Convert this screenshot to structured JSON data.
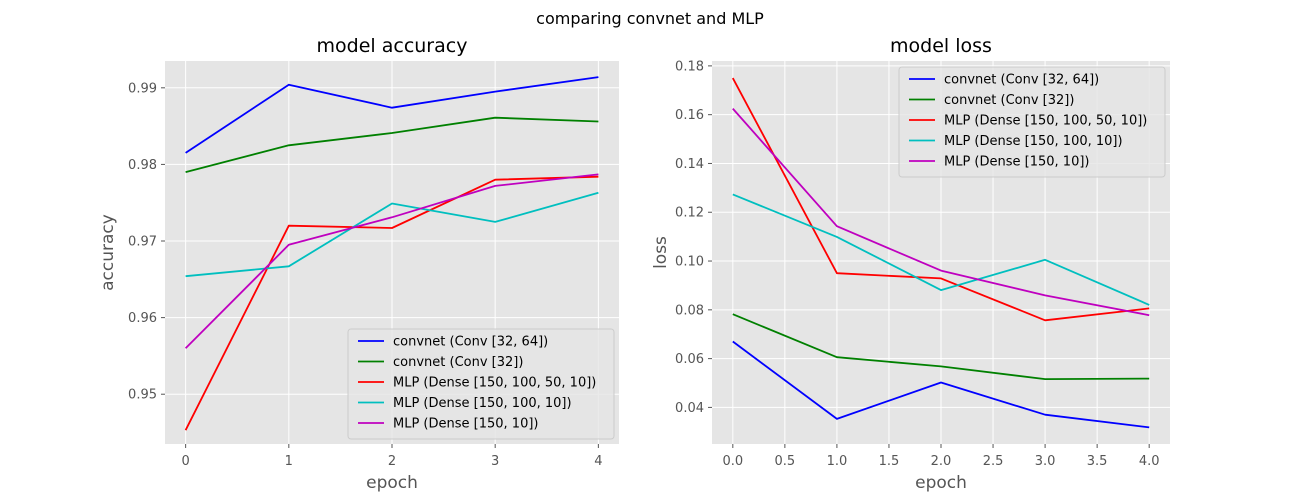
{
  "figure": {
    "title": "comparing convnet and MLP"
  },
  "chart_data": [
    {
      "type": "line",
      "title": "model accuracy",
      "xlabel": "epoch",
      "ylabel": "accuracy",
      "x": [
        0,
        1,
        2,
        3,
        4
      ],
      "xticks": [
        "0",
        "1",
        "2",
        "3",
        "4"
      ],
      "xlim": [
        -0.2,
        4.2
      ],
      "ylim": [
        0.9435,
        0.9935
      ],
      "yticks": [
        0.95,
        0.96,
        0.97,
        0.98,
        0.99
      ],
      "yticklabels": [
        "0.95",
        "0.96",
        "0.97",
        "0.98",
        "0.99"
      ],
      "grid": true,
      "legend_position": "lower-right",
      "series": [
        {
          "name": "convnet (Conv [32, 64])",
          "color": "#0000ff",
          "values": [
            0.9815,
            0.9904,
            0.9874,
            0.9895,
            0.9914
          ]
        },
        {
          "name": "convnet (Conv [32])",
          "color": "#008000",
          "values": [
            0.979,
            0.9825,
            0.9841,
            0.9861,
            0.9856
          ]
        },
        {
          "name": "MLP (Dense [150, 100, 50, 10])",
          "color": "#ff0000",
          "values": [
            0.9453,
            0.972,
            0.9717,
            0.978,
            0.9784
          ]
        },
        {
          "name": "MLP (Dense [150, 100, 10])",
          "color": "#00bfbf",
          "values": [
            0.9654,
            0.9667,
            0.9749,
            0.9725,
            0.9763
          ]
        },
        {
          "name": "MLP (Dense [150, 10])",
          "color": "#bf00bf",
          "values": [
            0.956,
            0.9695,
            0.9731,
            0.9772,
            0.9787
          ]
        }
      ]
    },
    {
      "type": "line",
      "title": "model loss",
      "xlabel": "epoch",
      "ylabel": "loss",
      "x": [
        0,
        1,
        2,
        3,
        4
      ],
      "xticks": [
        "0.0",
        "0.5",
        "1.0",
        "1.5",
        "2.0",
        "2.5",
        "3.0",
        "3.5",
        "4.0"
      ],
      "xlim": [
        -0.2,
        4.2
      ],
      "ylim": [
        0.025,
        0.182
      ],
      "yticks": [
        0.04,
        0.06,
        0.08,
        0.1,
        0.12,
        0.14,
        0.16,
        0.18
      ],
      "yticklabels": [
        "0.04",
        "0.06",
        "0.08",
        "0.10",
        "0.12",
        "0.14",
        "0.16",
        "0.18"
      ],
      "grid": true,
      "legend_position": "upper-right",
      "series": [
        {
          "name": "convnet (Conv [32, 64])",
          "color": "#0000ff",
          "values": [
            0.067,
            0.0353,
            0.0502,
            0.037,
            0.0318
          ]
        },
        {
          "name": "convnet (Conv [32])",
          "color": "#008000",
          "values": [
            0.0782,
            0.0606,
            0.0568,
            0.0516,
            0.0518
          ]
        },
        {
          "name": "MLP (Dense [150, 100, 50, 10])",
          "color": "#ff0000",
          "values": [
            0.175,
            0.095,
            0.0929,
            0.0757,
            0.0806
          ]
        },
        {
          "name": "MLP (Dense [150, 100, 10])",
          "color": "#00bfbf",
          "values": [
            0.1273,
            0.1099,
            0.0881,
            0.1005,
            0.082
          ]
        },
        {
          "name": "MLP (Dense [150, 10])",
          "color": "#bf00bf",
          "values": [
            0.1625,
            0.1143,
            0.0961,
            0.0859,
            0.0778
          ]
        }
      ]
    }
  ]
}
